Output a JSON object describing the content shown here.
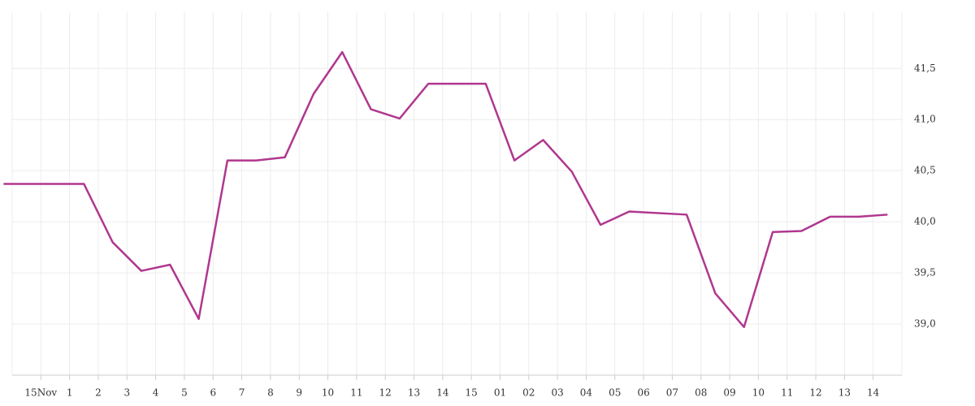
{
  "chart_data": {
    "type": "line",
    "x": [
      -1.3,
      1.5,
      2.5,
      3.5,
      4.5,
      5.5,
      6.5,
      7.5,
      8.5,
      9.5,
      10.5,
      11.5,
      12.5,
      13.5,
      15.5,
      16.5,
      17.5,
      18.5,
      19.5,
      20.5,
      22.5,
      23.5,
      24.5,
      25.5,
      26.5,
      27.5,
      28.5,
      29.5
    ],
    "series": [
      {
        "color": "#b0378f",
        "values": [
          40.37,
          40.37,
          39.8,
          39.52,
          39.58,
          39.05,
          40.6,
          40.6,
          40.63,
          41.25,
          41.66,
          41.1,
          41.01,
          41.35,
          41.35,
          40.6,
          40.8,
          40.49,
          39.97,
          40.1,
          40.07,
          39.3,
          38.97,
          39.9,
          39.91,
          40.05,
          40.05,
          40.07
        ]
      }
    ],
    "xlim": [
      -1,
      30
    ],
    "xticks": [
      {
        "value": 0,
        "label": "15Nov"
      },
      1,
      2,
      3,
      4,
      5,
      6,
      7,
      8,
      9,
      10,
      11,
      12,
      13,
      14,
      15,
      {
        "value": 16,
        "label": "01"
      },
      {
        "value": 17,
        "label": "02"
      },
      {
        "value": 18,
        "label": "03"
      },
      {
        "value": 19,
        "label": "04"
      },
      {
        "value": 20,
        "label": "05"
      },
      {
        "value": 21,
        "label": "06"
      },
      {
        "value": 22,
        "label": "07"
      },
      {
        "value": 23,
        "label": "08"
      },
      {
        "value": 24,
        "label": "09"
      },
      {
        "value": 25,
        "label": "10"
      },
      {
        "value": 26,
        "label": "11"
      },
      {
        "value": 27,
        "label": "12"
      },
      {
        "value": 28,
        "label": "13"
      },
      {
        "value": 29,
        "label": "14"
      }
    ],
    "ylim": [
      38.5,
      42.05
    ],
    "yticks": [
      {
        "value": 39.0,
        "label": "39,0"
      },
      {
        "value": 39.5,
        "label": "39,5"
      },
      {
        "value": 40.0,
        "label": "40,0"
      },
      {
        "value": 40.5,
        "label": "40,5"
      },
      {
        "value": 41.0,
        "label": "41,0"
      },
      {
        "value": 41.5,
        "label": "41,5"
      }
    ],
    "grid": true
  }
}
